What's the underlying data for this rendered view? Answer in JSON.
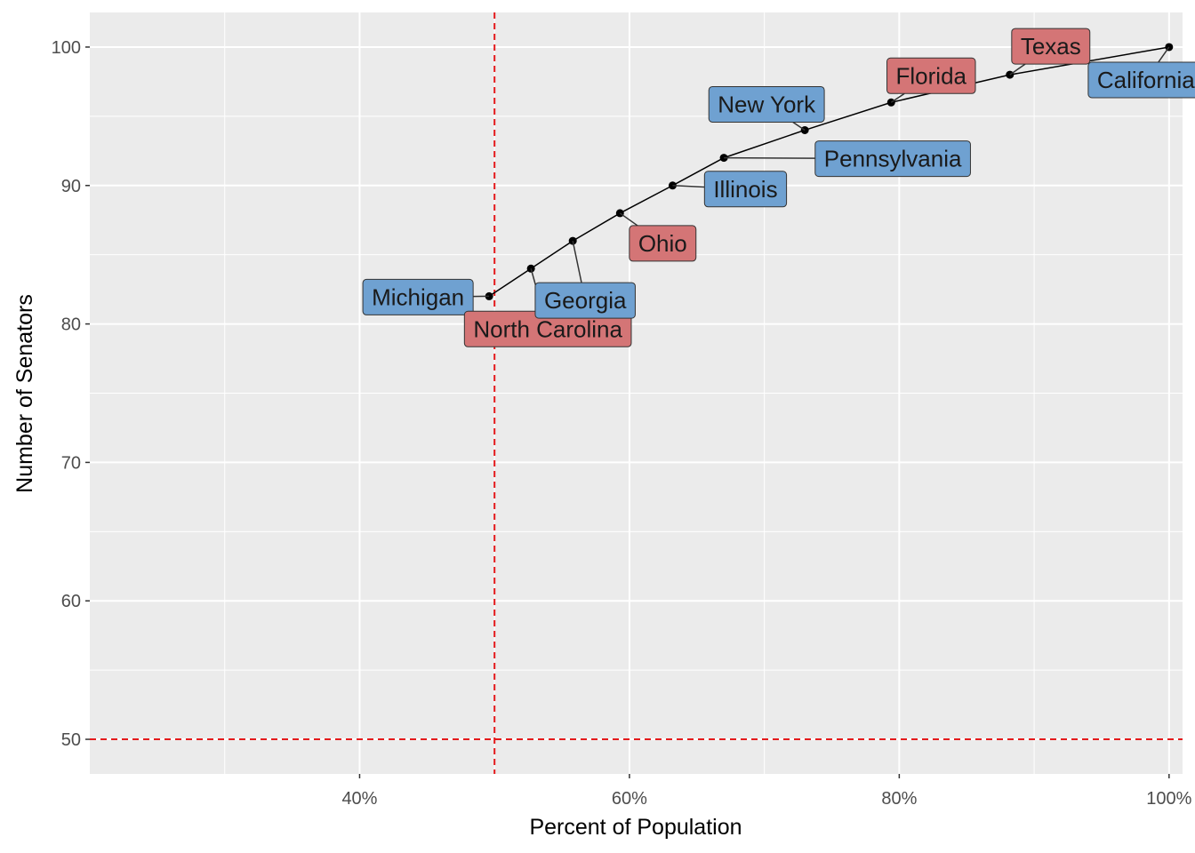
{
  "chart_data": {
    "type": "line",
    "title": "",
    "xlabel": "Percent of Population",
    "ylabel": "Number of Senators",
    "xlim": [
      0.2,
      1.01
    ],
    "ylim": [
      47.5,
      102.5
    ],
    "x_ticks": [
      {
        "value": 0.4,
        "label": "40%"
      },
      {
        "value": 0.6,
        "label": "60%"
      },
      {
        "value": 0.8,
        "label": "80%"
      },
      {
        "value": 1.0,
        "label": "100%"
      }
    ],
    "y_ticks": [
      {
        "value": 50,
        "label": "50"
      },
      {
        "value": 60,
        "label": "60"
      },
      {
        "value": 70,
        "label": "70"
      },
      {
        "value": 80,
        "label": "80"
      },
      {
        "value": 90,
        "label": "90"
      },
      {
        "value": 100,
        "label": "100"
      }
    ],
    "reference_lines": [
      {
        "orientation": "vertical",
        "value": 0.5,
        "style": "dashed",
        "color": "#e41a1c"
      },
      {
        "orientation": "horizontal",
        "value": 50,
        "style": "dashed",
        "color": "#e41a1c"
      }
    ],
    "points": [
      {
        "state": "Michigan",
        "x": 0.496,
        "y": 82,
        "party": "blue"
      },
      {
        "state": "North Carolina",
        "x": 0.527,
        "y": 84,
        "party": "red"
      },
      {
        "state": "Georgia",
        "x": 0.558,
        "y": 86,
        "party": "blue"
      },
      {
        "state": "Ohio",
        "x": 0.593,
        "y": 88,
        "party": "red"
      },
      {
        "state": "Illinois",
        "x": 0.632,
        "y": 90,
        "party": "blue"
      },
      {
        "state": "Pennsylvania",
        "x": 0.67,
        "y": 92,
        "party": "blue"
      },
      {
        "state": "New York",
        "x": 0.73,
        "y": 94,
        "party": "blue"
      },
      {
        "state": "Florida",
        "x": 0.794,
        "y": 96,
        "party": "red"
      },
      {
        "state": "Texas",
        "x": 0.882,
        "y": 98,
        "party": "red"
      },
      {
        "state": "California",
        "x": 1.0,
        "y": 100,
        "party": "blue"
      }
    ],
    "label_colors": {
      "blue": "#6fa1d1",
      "red": "#d47576"
    },
    "grid": true,
    "panel_background": "#ebebeb"
  }
}
